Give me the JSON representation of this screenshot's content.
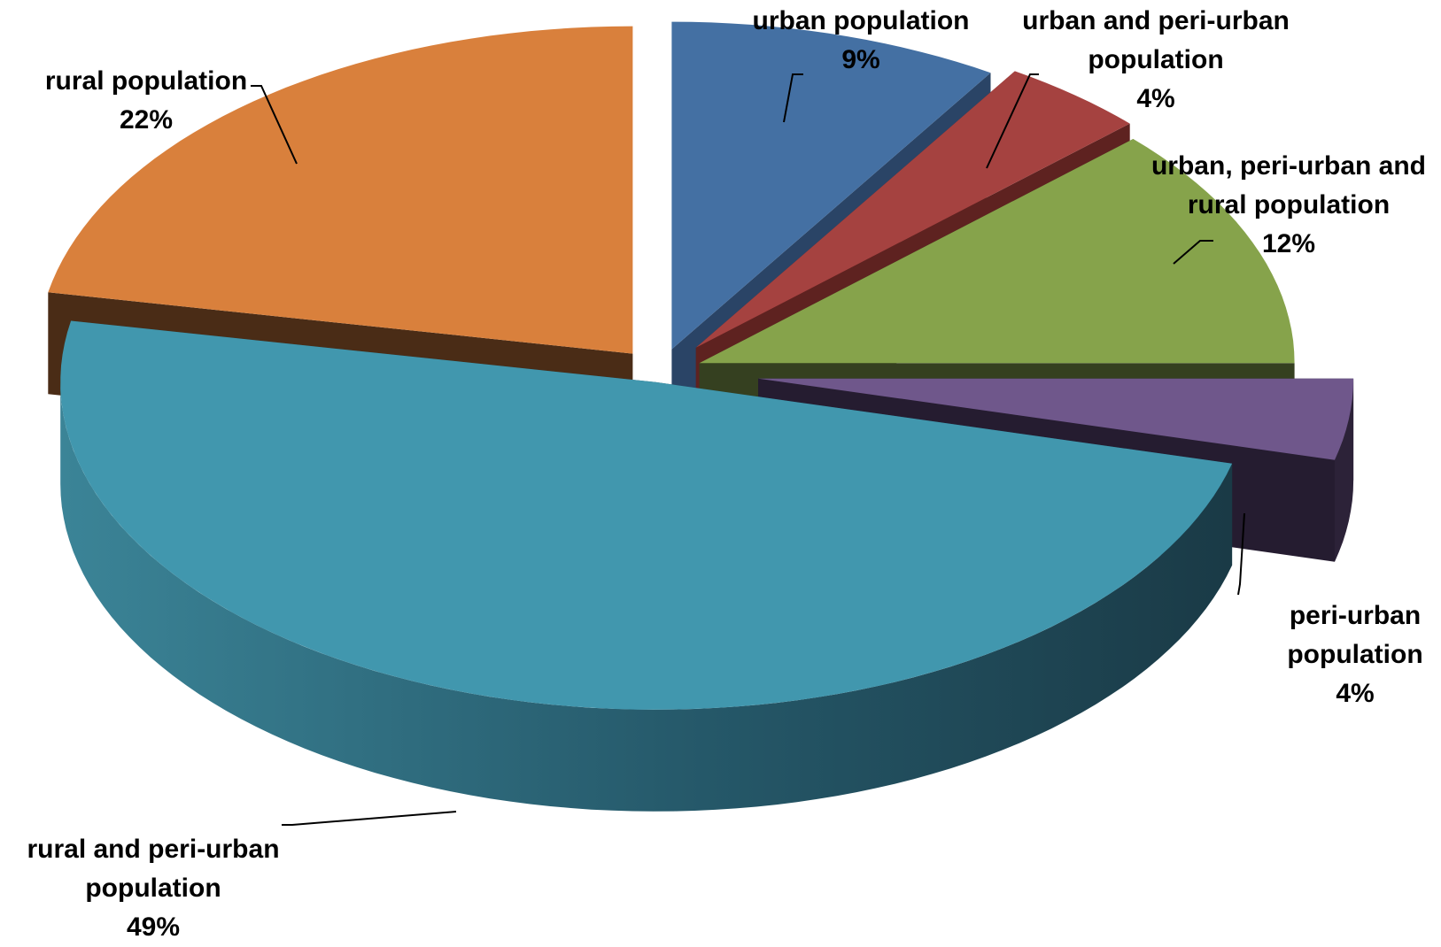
{
  "chart_data": {
    "type": "pie",
    "style": "3d-exploded",
    "slices": [
      {
        "label": "urban population",
        "percent_label": "9%",
        "value": 9,
        "color": "#4470A3"
      },
      {
        "label": "urban and peri-urban population",
        "percent_label": "4%",
        "value": 4,
        "color": "#A54240"
      },
      {
        "label": "urban, peri-urban and rural population",
        "percent_label": "12%",
        "value": 12,
        "color": "#86A34B"
      },
      {
        "label": "peri-urban population",
        "percent_label": "4%",
        "value": 4,
        "color": "#6F578B"
      },
      {
        "label": "rural and peri-urban population",
        "percent_label": "49%",
        "value": 49,
        "color": "#4197AE"
      },
      {
        "label": "rural population",
        "percent_label": "22%",
        "value": 22,
        "color": "#D9803C"
      }
    ],
    "legend": "none"
  }
}
